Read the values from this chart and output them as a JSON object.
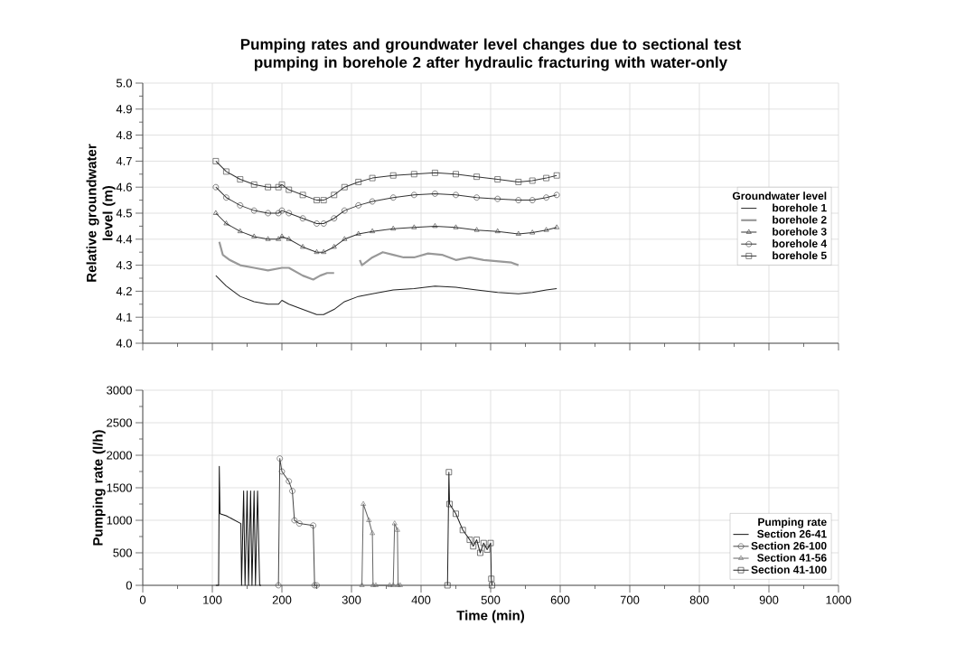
{
  "chart_data": [
    {
      "type": "line",
      "title": "Pumping rates and groundwater level changes due to sectional test pumping in borehole 2 after hydraulic fracturing with water-only",
      "ylabel": "Relative groundwater level (m)",
      "legend_title": "Groundwater level",
      "xlim": [
        0,
        1000
      ],
      "xticks": [
        0,
        100,
        200,
        300,
        400,
        500,
        600,
        700,
        800,
        900,
        1000
      ],
      "ylim": [
        4.0,
        5.0
      ],
      "yticks": [
        {
          "value": 4.0,
          "label": "4.0"
        },
        4.1,
        4.2,
        4.3,
        4.4,
        4.5,
        4.6,
        4.7,
        4.8,
        4.9,
        {
          "value": 5.0,
          "label": "5.0"
        }
      ],
      "grid": true,
      "legend": "right",
      "tick_labels": "y",
      "line_style": "solid",
      "series": [
        {
          "name": "borehole 1",
          "color": "#222222",
          "marker": "none",
          "x": [
            105,
            120,
            140,
            160,
            180,
            195,
            200,
            210,
            230,
            250,
            260,
            275,
            290,
            310,
            330,
            360,
            390,
            420,
            450,
            480,
            510,
            540,
            560,
            580,
            595
          ],
          "values": [
            4.26,
            4.22,
            4.18,
            4.16,
            4.15,
            4.15,
            4.165,
            4.15,
            4.13,
            4.11,
            4.11,
            4.13,
            4.16,
            4.18,
            4.19,
            4.205,
            4.21,
            4.22,
            4.215,
            4.205,
            4.195,
            4.19,
            4.195,
            4.205,
            4.21
          ]
        },
        {
          "name": "borehole 2",
          "color": "#999999",
          "marker": "none",
          "x": [
            110,
            115,
            125,
            140,
            160,
            180,
            200,
            210,
            230,
            245,
            255,
            265,
            275,
            290,
            312,
            315,
            330,
            345,
            360,
            375,
            390,
            410,
            430,
            450,
            470,
            490,
            510,
            530,
            540
          ],
          "values": [
            4.39,
            4.34,
            4.32,
            4.3,
            4.29,
            4.28,
            4.29,
            4.29,
            4.26,
            4.245,
            4.26,
            4.27,
            4.27,
            null,
            4.32,
            4.3,
            4.33,
            4.35,
            4.34,
            4.33,
            4.33,
            4.345,
            4.34,
            4.32,
            4.33,
            4.32,
            4.315,
            4.31,
            4.3
          ]
        },
        {
          "name": "borehole 3",
          "color": "#333333",
          "marker": "triangle",
          "x": [
            105,
            120,
            140,
            160,
            180,
            195,
            200,
            210,
            230,
            250,
            260,
            275,
            290,
            310,
            330,
            360,
            390,
            420,
            450,
            480,
            510,
            540,
            560,
            580,
            595
          ],
          "values": [
            4.5,
            4.46,
            4.43,
            4.41,
            4.4,
            4.4,
            4.41,
            4.4,
            4.37,
            4.35,
            4.35,
            4.37,
            4.4,
            4.42,
            4.43,
            4.44,
            4.445,
            4.45,
            4.445,
            4.435,
            4.43,
            4.42,
            4.425,
            4.435,
            4.445
          ]
        },
        {
          "name": "borehole 4",
          "color": "#333333",
          "marker": "circle",
          "x": [
            105,
            120,
            140,
            160,
            180,
            195,
            200,
            210,
            230,
            250,
            260,
            275,
            290,
            310,
            330,
            360,
            390,
            420,
            450,
            480,
            510,
            540,
            560,
            580,
            595
          ],
          "values": [
            4.6,
            4.56,
            4.53,
            4.51,
            4.5,
            4.5,
            4.51,
            4.5,
            4.48,
            4.46,
            4.46,
            4.48,
            4.51,
            4.53,
            4.545,
            4.56,
            4.57,
            4.575,
            4.57,
            4.56,
            4.555,
            4.55,
            4.55,
            4.56,
            4.57
          ]
        },
        {
          "name": "borehole 5",
          "color": "#333333",
          "marker": "square",
          "x": [
            105,
            120,
            140,
            160,
            180,
            195,
            200,
            210,
            230,
            250,
            260,
            275,
            290,
            310,
            330,
            360,
            390,
            420,
            450,
            480,
            510,
            540,
            560,
            580,
            595
          ],
          "values": [
            4.7,
            4.66,
            4.63,
            4.61,
            4.6,
            4.6,
            4.61,
            4.59,
            4.57,
            4.55,
            4.55,
            4.57,
            4.6,
            4.62,
            4.635,
            4.645,
            4.65,
            4.655,
            4.65,
            4.64,
            4.63,
            4.62,
            4.625,
            4.635,
            4.645
          ]
        }
      ]
    },
    {
      "type": "line",
      "xlabel": "Time (min)",
      "ylabel": "Pumping rate (l/h)",
      "legend_title": "Pumping rate",
      "xlim": [
        0,
        1000
      ],
      "xticks": [
        0,
        100,
        200,
        300,
        400,
        500,
        600,
        700,
        800,
        900,
        1000
      ],
      "ylim": [
        0,
        3000
      ],
      "yticks": [
        0,
        500,
        1000,
        1500,
        2000,
        2500,
        3000
      ],
      "grid": true,
      "legend": "bottom right",
      "line_style": "solid",
      "series": [
        {
          "name": "Section 26-41",
          "color": "#111111",
          "marker": "none",
          "x": [
            105,
            109,
            110,
            111,
            120,
            141,
            142,
            145,
            147,
            150,
            152,
            155,
            157,
            160,
            162,
            165,
            168,
            170
          ],
          "values": [
            0,
            0,
            1830,
            1100,
            1070,
            950,
            0,
            1450,
            0,
            1450,
            0,
            1450,
            0,
            1450,
            0,
            1450,
            0,
            0
          ]
        },
        {
          "name": "Section 26-100",
          "color": "#444444",
          "marker": "circle",
          "x": [
            195,
            197,
            200,
            210,
            215,
            218,
            225,
            245,
            247,
            250
          ],
          "values": [
            0,
            1950,
            1750,
            1600,
            1450,
            1000,
            950,
            920,
            0,
            0
          ]
        },
        {
          "name": "Section 41-56",
          "color": "#666666",
          "marker": "triangle",
          "x": [
            315,
            317,
            325,
            330,
            331,
            335,
            355,
            360,
            362,
            366,
            367,
            370
          ],
          "values": [
            0,
            1250,
            1000,
            800,
            0,
            0,
            0,
            0,
            950,
            850,
            0,
            0
          ]
        },
        {
          "name": "Section 41-100",
          "color": "#222222",
          "marker": "square",
          "x": [
            438,
            440,
            441,
            450,
            460,
            470,
            475,
            480,
            485,
            490,
            495,
            500,
            501,
            502
          ],
          "values": [
            0,
            1740,
            1250,
            1100,
            850,
            700,
            600,
            700,
            500,
            650,
            550,
            650,
            100,
            0
          ]
        }
      ]
    }
  ]
}
